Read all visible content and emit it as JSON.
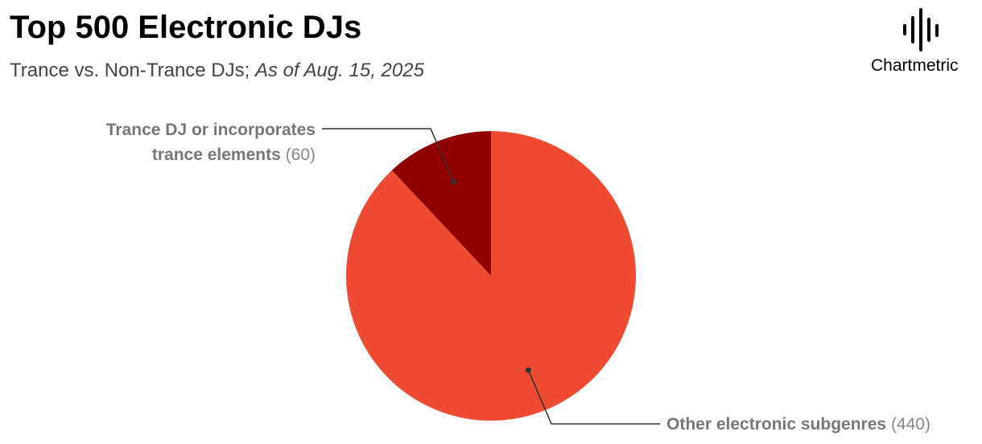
{
  "chart_data": {
    "type": "pie",
    "title": "Top 500 Electronic DJs",
    "subtitle": "Trance vs. Non-Trance DJs;",
    "subtitle_note": "As of Aug. 15, 2025",
    "brand": "Chartmetric",
    "categories": [
      "Trance DJ or incorporates trance elements",
      "Other electronic subgenres"
    ],
    "values": [
      60,
      440
    ],
    "value_labels": [
      "(60)",
      "(440)"
    ],
    "colors": [
      "#900000",
      "#ef4a32"
    ]
  }
}
